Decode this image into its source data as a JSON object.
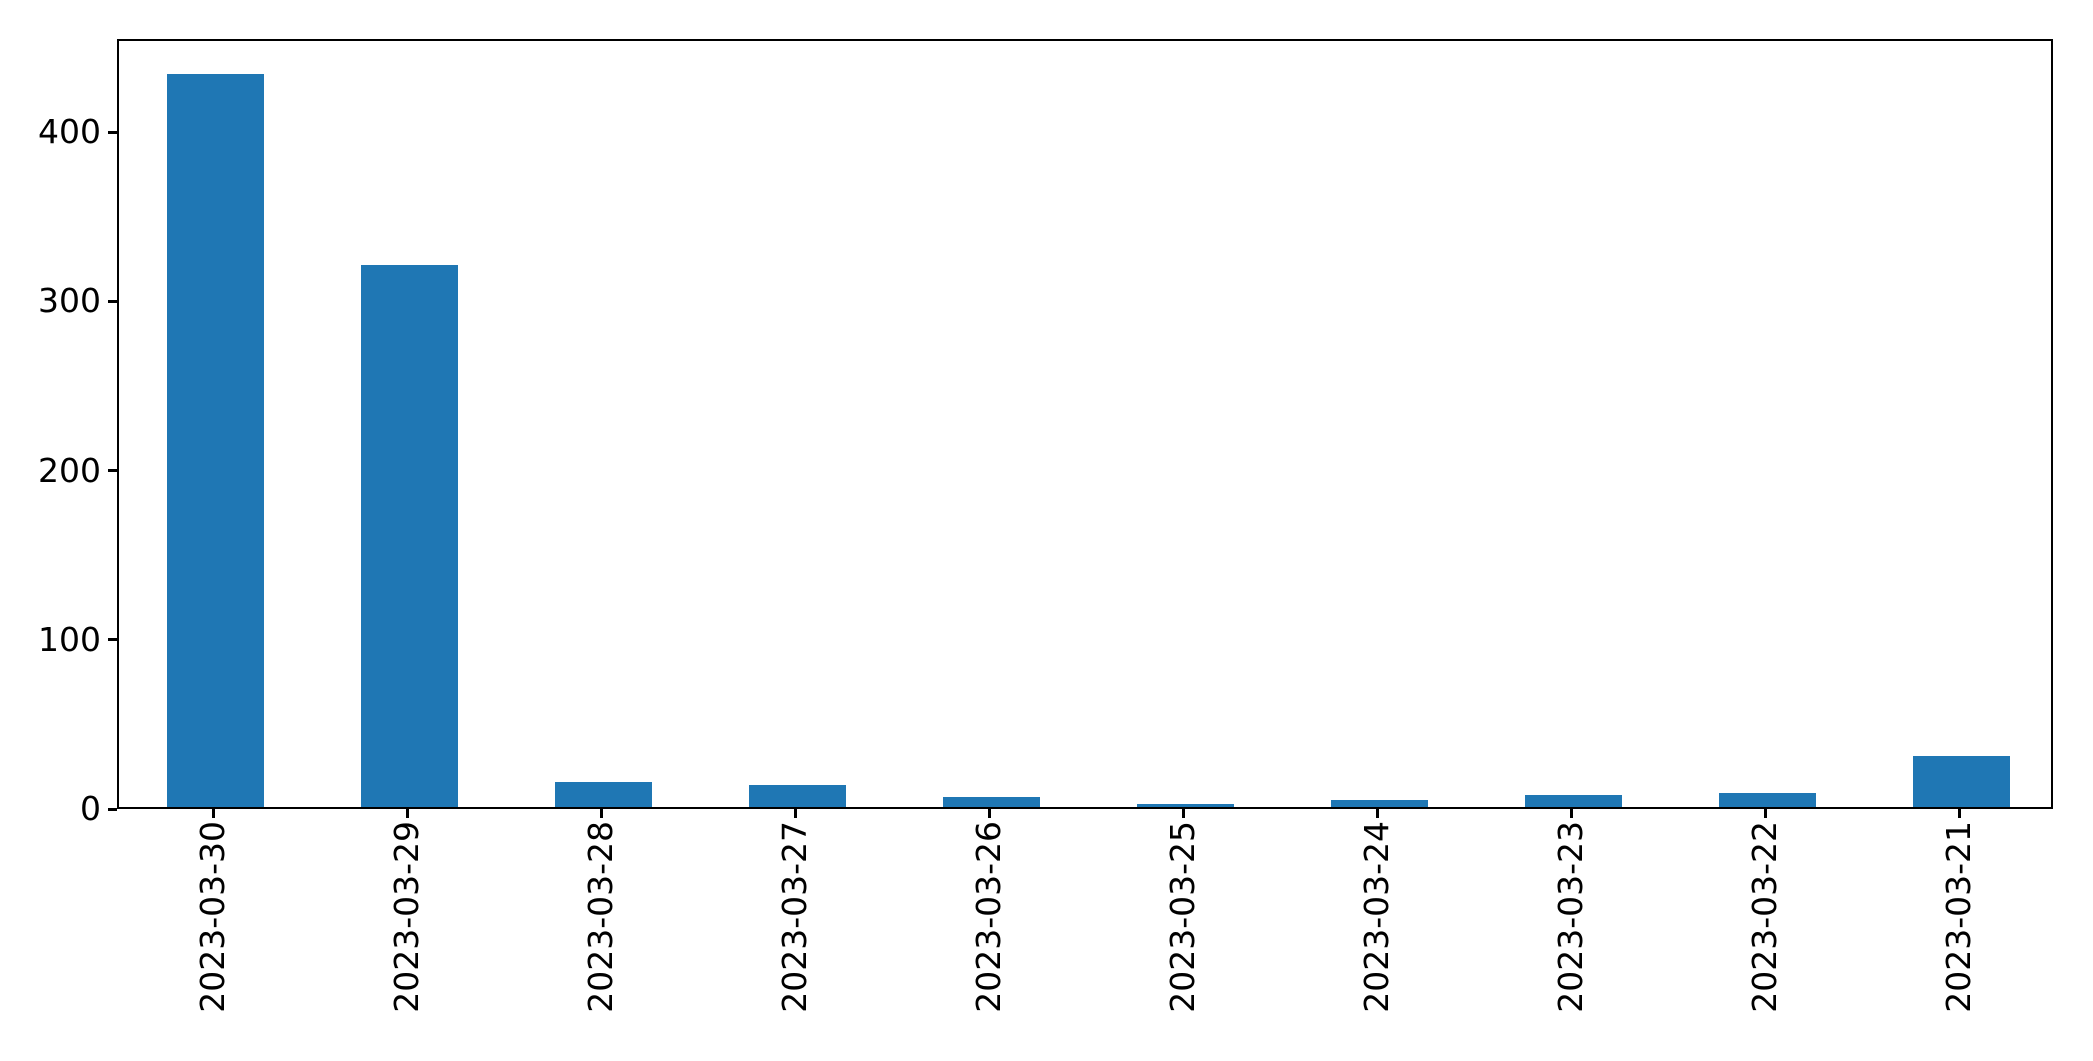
{
  "figure": {
    "background_color": "#ffffff",
    "spine_color": "#000000",
    "tick_color": "#000000",
    "tick_label_color": "#000000"
  },
  "chart_data": {
    "type": "bar",
    "categories": [
      "2023-03-30",
      "2023-03-29",
      "2023-03-28",
      "2023-03-27",
      "2023-03-26",
      "2023-03-25",
      "2023-03-24",
      "2023-03-23",
      "2023-03-22",
      "2023-03-21"
    ],
    "values": [
      433,
      320,
      15,
      13,
      6,
      2,
      4,
      7,
      8,
      30
    ],
    "title": "",
    "xlabel": "",
    "ylabel": "",
    "ylim": [
      0,
      455
    ],
    "yticks": [
      0,
      100,
      200,
      300,
      400
    ],
    "ytick_labels": [
      "0",
      "100",
      "200",
      "300",
      "400"
    ],
    "bar_color": "#1f77b4",
    "bar_width_fraction": 0.5,
    "x_tick_label_rotation": 90,
    "grid": false,
    "legend": false
  }
}
